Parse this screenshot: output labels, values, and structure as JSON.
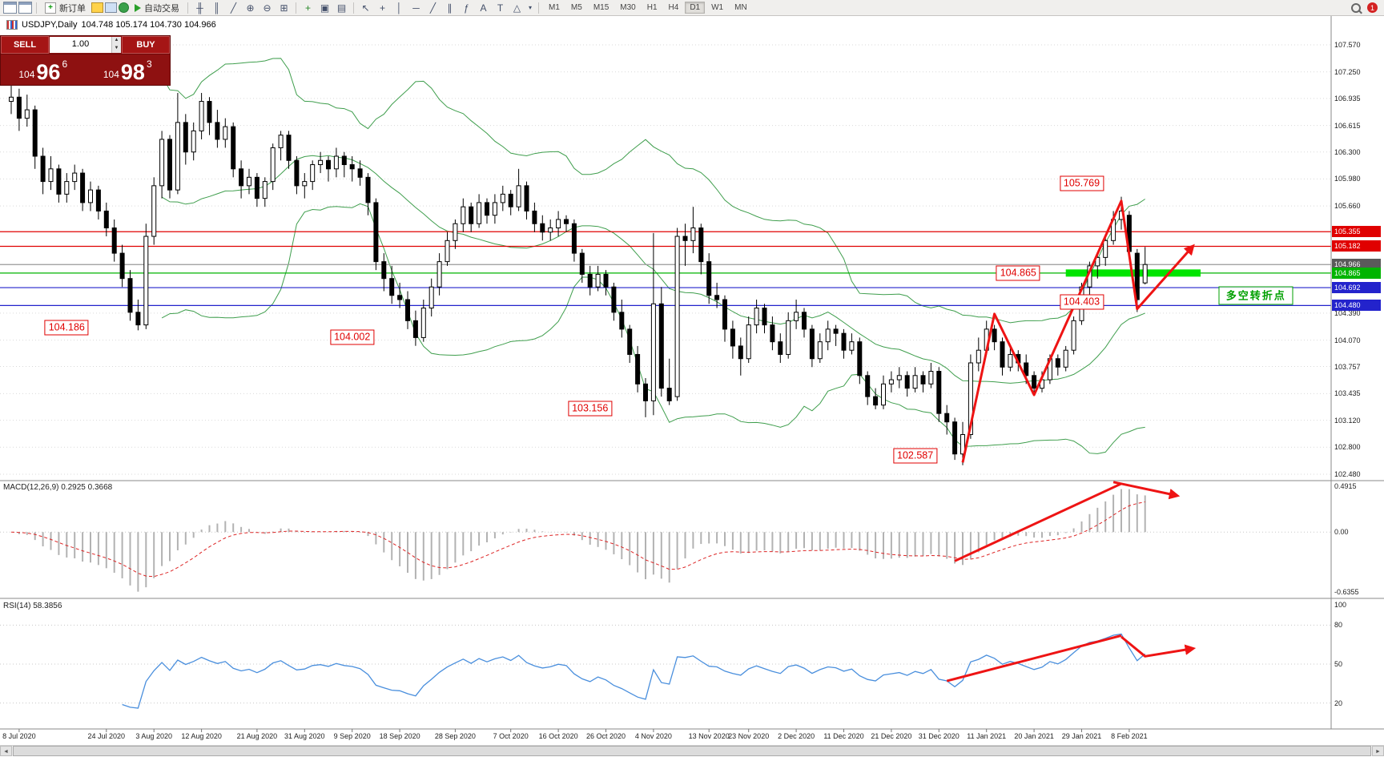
{
  "toolbar": {
    "new_order_label": "新订单",
    "auto_trading_label": "自动交易",
    "timeframes": [
      "M1",
      "M5",
      "M15",
      "M30",
      "H1",
      "H4",
      "D1",
      "W1",
      "MN"
    ],
    "active_timeframe": "D1",
    "notification_count": "1",
    "icons": [
      "chart-window-icon",
      "chart-window-2-icon",
      "new-order-icon",
      "market-watch-icon",
      "data-window-icon",
      "navigator-icon",
      "auto-trading-play-icon",
      "bar-chart-icon",
      "candlestick-chart-icon",
      "line-chart-icon",
      "zoom-in-icon",
      "zoom-out-icon",
      "tile-windows-icon",
      "indicators-icon",
      "objects-icon",
      "templates-icon",
      "cursor-icon",
      "crosshair-icon",
      "vertical-line-icon",
      "horizontal-line-icon",
      "trendline-icon",
      "channel-icon",
      "fibonacci-icon",
      "text-icon",
      "label-icon",
      "shapes-icon",
      "chevron-down-icon",
      "search-icon",
      "notification-badge"
    ]
  },
  "window": {
    "title": "USDJPY,Daily",
    "ohlc": "104.748 105.174 104.730 104.966"
  },
  "trade_panel": {
    "sell_label": "SELL",
    "buy_label": "BUY",
    "volume": "1.00",
    "sell_price_prefix": "104",
    "sell_price_big": "96",
    "sell_price_sup": "6",
    "buy_price_prefix": "104",
    "buy_price_big": "98",
    "buy_price_sup": "3"
  },
  "chart_data": {
    "type": "candlestick",
    "symbol": "USDJPY",
    "timeframe": "Daily",
    "price_axis_ticks": [
      "107.570",
      "107.250",
      "106.935",
      "106.615",
      "106.300",
      "105.980",
      "105.660",
      "104.390",
      "104.070",
      "103.757",
      "103.435",
      "103.120",
      "102.800",
      "102.480"
    ],
    "hlines": [
      {
        "price": "105.355",
        "color": "red"
      },
      {
        "price": "105.182",
        "color": "red"
      },
      {
        "price": "104.966",
        "color": "gray"
      },
      {
        "price": "104.865",
        "color": "green"
      },
      {
        "price": "104.692",
        "color": "blue"
      },
      {
        "price": "104.480",
        "color": "blue"
      }
    ],
    "green_zone": {
      "price": "104.865",
      "from_idx": 133,
      "to_idx": 150
    },
    "candles": [
      [
        106.9,
        107.1,
        106.75,
        106.95
      ],
      [
        106.95,
        107.05,
        106.55,
        106.7
      ],
      [
        106.7,
        106.98,
        106.6,
        106.8
      ],
      [
        106.8,
        106.85,
        106.1,
        106.25
      ],
      [
        106.25,
        106.35,
        105.8,
        105.95
      ],
      [
        105.95,
        106.25,
        105.85,
        106.1
      ],
      [
        106.1,
        106.15,
        105.7,
        105.8
      ],
      [
        105.8,
        106.05,
        105.7,
        105.95
      ],
      [
        105.95,
        106.15,
        105.85,
        106.05
      ],
      [
        106.05,
        106.1,
        105.6,
        105.7
      ],
      [
        105.7,
        105.95,
        105.6,
        105.85
      ],
      [
        105.85,
        105.9,
        105.5,
        105.6
      ],
      [
        105.6,
        105.7,
        105.3,
        105.4
      ],
      [
        105.4,
        105.5,
        105.0,
        105.1
      ],
      [
        105.1,
        105.2,
        104.7,
        104.8
      ],
      [
        104.8,
        104.9,
        104.3,
        104.4
      ],
      [
        104.4,
        104.55,
        104.186,
        104.25
      ],
      [
        104.25,
        105.45,
        104.2,
        105.3
      ],
      [
        105.3,
        106.0,
        105.2,
        105.9
      ],
      [
        105.9,
        106.55,
        105.75,
        106.45
      ],
      [
        106.45,
        106.5,
        105.75,
        105.85
      ],
      [
        105.85,
        107.0,
        105.8,
        106.65
      ],
      [
        106.65,
        106.75,
        106.15,
        106.3
      ],
      [
        106.3,
        106.65,
        106.2,
        106.55
      ],
      [
        106.55,
        107.0,
        106.45,
        106.9
      ],
      [
        106.9,
        106.95,
        106.5,
        106.65
      ],
      [
        106.65,
        106.8,
        106.35,
        106.45
      ],
      [
        106.45,
        106.7,
        106.35,
        106.6
      ],
      [
        106.6,
        106.65,
        106.0,
        106.1
      ],
      [
        106.1,
        106.2,
        105.75,
        105.9
      ],
      [
        105.9,
        106.1,
        105.8,
        106.0
      ],
      [
        106.0,
        106.05,
        105.65,
        105.75
      ],
      [
        105.75,
        106.0,
        105.65,
        105.95
      ],
      [
        105.95,
        106.4,
        105.85,
        106.35
      ],
      [
        106.35,
        106.55,
        106.2,
        106.5
      ],
      [
        106.5,
        106.55,
        106.1,
        106.2
      ],
      [
        106.2,
        106.25,
        105.8,
        105.9
      ],
      [
        105.9,
        106.05,
        105.75,
        105.95
      ],
      [
        105.95,
        106.2,
        105.85,
        106.15
      ],
      [
        106.15,
        106.3,
        106.05,
        106.2
      ],
      [
        106.2,
        106.25,
        105.95,
        106.1
      ],
      [
        106.1,
        106.35,
        106.0,
        106.25
      ],
      [
        106.25,
        106.3,
        106.0,
        106.15
      ],
      [
        106.15,
        106.25,
        105.95,
        106.1
      ],
      [
        106.1,
        106.2,
        105.9,
        106.0
      ],
      [
        106.0,
        106.05,
        105.55,
        105.7
      ],
      [
        105.7,
        105.75,
        104.9,
        105.0
      ],
      [
        105.0,
        105.1,
        104.65,
        104.8
      ],
      [
        104.8,
        104.95,
        104.5,
        104.6
      ],
      [
        104.6,
        104.75,
        104.45,
        104.55
      ],
      [
        104.55,
        104.65,
        104.2,
        104.3
      ],
      [
        104.3,
        104.42,
        104.002,
        104.1
      ],
      [
        104.1,
        104.55,
        104.05,
        104.45
      ],
      [
        104.45,
        104.8,
        104.35,
        104.7
      ],
      [
        104.7,
        105.1,
        104.6,
        105.0
      ],
      [
        105.0,
        105.35,
        104.95,
        105.25
      ],
      [
        105.25,
        105.5,
        105.15,
        105.45
      ],
      [
        105.45,
        105.75,
        105.35,
        105.65
      ],
      [
        105.65,
        105.7,
        105.35,
        105.45
      ],
      [
        105.45,
        105.8,
        105.4,
        105.7
      ],
      [
        105.7,
        105.75,
        105.45,
        105.55
      ],
      [
        105.55,
        105.8,
        105.45,
        105.7
      ],
      [
        105.7,
        105.9,
        105.6,
        105.8
      ],
      [
        105.8,
        105.85,
        105.55,
        105.65
      ],
      [
        105.65,
        106.1,
        105.6,
        105.9
      ],
      [
        105.9,
        105.95,
        105.5,
        105.6
      ],
      [
        105.6,
        105.7,
        105.35,
        105.45
      ],
      [
        105.45,
        105.55,
        105.25,
        105.35
      ],
      [
        105.35,
        105.5,
        105.25,
        105.4
      ],
      [
        105.4,
        105.6,
        105.3,
        105.5
      ],
      [
        105.5,
        105.55,
        105.35,
        105.45
      ],
      [
        105.45,
        105.5,
        105.0,
        105.1
      ],
      [
        105.1,
        105.15,
        104.75,
        104.85
      ],
      [
        104.85,
        104.95,
        104.6,
        104.7
      ],
      [
        104.7,
        104.95,
        104.65,
        104.85
      ],
      [
        104.85,
        104.9,
        104.6,
        104.7
      ],
      [
        104.7,
        104.75,
        104.3,
        104.4
      ],
      [
        104.4,
        104.55,
        104.1,
        104.2
      ],
      [
        104.2,
        104.25,
        103.8,
        103.9
      ],
      [
        103.9,
        104.0,
        103.45,
        103.55
      ],
      [
        103.55,
        103.62,
        103.156,
        103.35
      ],
      [
        103.35,
        105.34,
        103.18,
        104.5
      ],
      [
        104.5,
        104.7,
        103.4,
        103.5
      ],
      [
        103.5,
        103.85,
        103.3,
        103.35
      ],
      [
        103.4,
        105.4,
        103.35,
        105.3
      ],
      [
        105.3,
        105.45,
        104.95,
        105.25
      ],
      [
        105.25,
        105.65,
        105.1,
        105.4
      ],
      [
        105.4,
        105.45,
        104.85,
        105.0
      ],
      [
        105.0,
        105.1,
        104.5,
        104.6
      ],
      [
        104.6,
        104.75,
        104.45,
        104.55
      ],
      [
        104.55,
        104.6,
        104.05,
        104.2
      ],
      [
        104.2,
        104.3,
        103.85,
        104.0
      ],
      [
        104.0,
        104.1,
        103.65,
        103.85
      ],
      [
        103.85,
        104.35,
        103.8,
        104.25
      ],
      [
        104.25,
        104.55,
        104.15,
        104.45
      ],
      [
        104.45,
        104.5,
        104.15,
        104.25
      ],
      [
        104.25,
        104.35,
        103.95,
        104.05
      ],
      [
        104.05,
        104.15,
        103.8,
        103.9
      ],
      [
        103.9,
        104.4,
        103.85,
        104.3
      ],
      [
        104.3,
        104.55,
        104.2,
        104.4
      ],
      [
        104.4,
        104.45,
        104.1,
        104.2
      ],
      [
        104.2,
        104.25,
        103.75,
        103.85
      ],
      [
        103.85,
        104.15,
        103.8,
        104.05
      ],
      [
        104.05,
        104.3,
        103.95,
        104.2
      ],
      [
        104.2,
        104.25,
        104.0,
        104.15
      ],
      [
        104.15,
        104.2,
        103.85,
        103.95
      ],
      [
        103.95,
        104.15,
        103.9,
        104.05
      ],
      [
        104.05,
        104.1,
        103.55,
        103.65
      ],
      [
        103.65,
        103.7,
        103.3,
        103.4
      ],
      [
        103.4,
        103.5,
        103.25,
        103.3
      ],
      [
        103.3,
        103.65,
        103.25,
        103.55
      ],
      [
        103.55,
        103.7,
        103.45,
        103.6
      ],
      [
        103.6,
        103.75,
        103.5,
        103.65
      ],
      [
        103.65,
        103.7,
        103.4,
        103.5
      ],
      [
        103.5,
        103.75,
        103.45,
        103.65
      ],
      [
        103.65,
        103.7,
        103.45,
        103.55
      ],
      [
        103.55,
        103.8,
        103.5,
        103.7
      ],
      [
        103.7,
        103.75,
        103.1,
        103.2
      ],
      [
        103.2,
        103.3,
        102.95,
        103.1
      ],
      [
        103.1,
        103.15,
        102.65,
        102.72
      ],
      [
        102.72,
        103.1,
        102.587,
        102.95
      ],
      [
        102.95,
        103.9,
        102.9,
        103.8
      ],
      [
        103.8,
        104.1,
        103.7,
        103.95
      ],
      [
        103.95,
        104.3,
        103.9,
        104.2
      ],
      [
        104.2,
        104.25,
        103.95,
        104.05
      ],
      [
        104.05,
        104.1,
        103.65,
        103.75
      ],
      [
        103.75,
        104.0,
        103.7,
        103.9
      ],
      [
        103.9,
        103.95,
        103.7,
        103.8
      ],
      [
        103.8,
        103.9,
        103.55,
        103.65
      ],
      [
        103.65,
        103.7,
        103.45,
        103.5
      ],
      [
        103.5,
        103.7,
        103.45,
        103.6
      ],
      [
        103.6,
        103.9,
        103.55,
        103.85
      ],
      [
        103.85,
        103.9,
        103.65,
        103.75
      ],
      [
        103.75,
        104.0,
        103.7,
        103.95
      ],
      [
        103.95,
        104.35,
        103.9,
        104.3
      ],
      [
        104.3,
        104.75,
        104.25,
        104.7
      ],
      [
        104.7,
        105.0,
        104.6,
        104.95
      ],
      [
        104.95,
        105.1,
        104.8,
        105.05
      ],
      [
        105.05,
        105.3,
        104.95,
        105.25
      ],
      [
        105.25,
        105.6,
        105.2,
        105.5
      ],
      [
        105.5,
        105.769,
        105.38,
        105.6
      ],
      [
        105.55,
        105.6,
        105.05,
        105.12
      ],
      [
        105.1,
        105.15,
        104.403,
        104.55
      ],
      [
        104.748,
        105.174,
        104.73,
        104.966
      ]
    ],
    "date_labels": [
      [
        1,
        "8 Jul 2020"
      ],
      [
        12,
        "24 Jul 2020"
      ],
      [
        18,
        "3 Aug 2020"
      ],
      [
        24,
        "12 Aug 2020"
      ],
      [
        31,
        "21 Aug 2020"
      ],
      [
        37,
        "31 Aug 2020"
      ],
      [
        43,
        "9 Sep 2020"
      ],
      [
        49,
        "18 Sep 2020"
      ],
      [
        56,
        "28 Sep 2020"
      ],
      [
        63,
        "7 Oct 2020"
      ],
      [
        69,
        "16 Oct 2020"
      ],
      [
        75,
        "26 Oct 2020"
      ],
      [
        81,
        "4 Nov 2020"
      ],
      [
        88,
        "13 Nov 2020"
      ],
      [
        93,
        "23 Nov 2020"
      ],
      [
        99,
        "2 Dec 2020"
      ],
      [
        105,
        "11 Dec 2020"
      ],
      [
        111,
        "21 Dec 2020"
      ],
      [
        117,
        "31 Dec 2020"
      ],
      [
        123,
        "11 Jan 2021"
      ],
      [
        129,
        "20 Jan 2021"
      ],
      [
        135,
        "29 Jan 2021"
      ],
      [
        141,
        "8 Feb 2021"
      ]
    ],
    "callouts": [
      {
        "text": "104.186",
        "idx": 7,
        "price": 104.22
      },
      {
        "text": "104.002",
        "idx": 43,
        "price": 104.1
      },
      {
        "text": "103.156",
        "idx": 73,
        "price": 103.26
      },
      {
        "text": "102.587",
        "idx": 114,
        "price": 102.7
      },
      {
        "text": "105.769",
        "idx": 135,
        "price": 105.93
      },
      {
        "text": "104.403",
        "idx": 135,
        "price": 104.52
      },
      {
        "text": "104.865",
        "idx": 127,
        "price": 104.865
      }
    ],
    "turning_point_box": {
      "text": "多空转折点",
      "idx": 157,
      "price": 104.6
    },
    "arrows": {
      "main": [
        [
          120,
          102.62
        ],
        [
          124,
          104.38
        ],
        [
          129,
          103.42
        ],
        [
          140,
          105.72
        ],
        [
          142,
          104.44
        ],
        [
          149,
          105.18
        ]
      ],
      "macd_trend": [
        [
          119,
          -0.28
        ],
        [
          140,
          0.47
        ]
      ],
      "macd_pullback": [
        [
          139,
          0.485
        ],
        [
          147,
          0.355
        ]
      ],
      "rsi_trend": [
        [
          118,
          37
        ],
        [
          140,
          72
        ]
      ],
      "rsi_zigzag": [
        [
          140,
          71
        ],
        [
          143,
          56
        ],
        [
          149,
          62
        ]
      ]
    },
    "indicators": {
      "bollinger": {
        "period": 20,
        "deviation": 2
      },
      "macd": {
        "label": "MACD(12,26,9)",
        "values": "0.2925 0.3668",
        "axis_max": "0.4915",
        "axis_zero": "0.00",
        "axis_min": "-0.6355",
        "params": [
          12,
          26,
          9
        ]
      },
      "rsi": {
        "label": "RSI(14)",
        "value": "58.3856",
        "period": 14,
        "axis_ticks": [
          100,
          80,
          50,
          20
        ]
      }
    }
  },
  "colors": {
    "bull": "#ffffff",
    "bear": "#000000",
    "wick": "#000000",
    "grid": "#d9d9d9",
    "bollinger": "#3f9e4d",
    "red_line": "#e00000",
    "blue_line": "#2323cc",
    "green_line": "#00b400",
    "green_zone": "#00e400",
    "arrow": "#ee1414",
    "macd_hist": "#b2b2b2",
    "macd_signal": "#dd2525",
    "rsi": "#4a8fdd",
    "current_tag": "#5a5a5a",
    "callout": "#e00000",
    "turning": "#00a000"
  }
}
